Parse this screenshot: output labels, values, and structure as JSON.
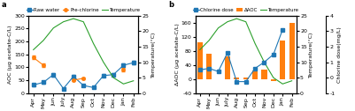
{
  "chart_data": [
    {
      "type": "line",
      "categories": [
        "Apr",
        "May",
        "Jun",
        "July",
        "Aug",
        "Sep",
        "Oct",
        "Nov",
        "Dec",
        "Jan",
        "Feb"
      ],
      "series": [
        {
          "name": "Raw water",
          "values": [
            32,
            42,
            72,
            18,
            65,
            30,
            22,
            68,
            72,
            108,
            118
          ],
          "errors": [
            4,
            4,
            7,
            3,
            5,
            3,
            3,
            5,
            5,
            7,
            7
          ],
          "marker": "square",
          "line_style": "solid"
        },
        {
          "name": "Pre-chlorine",
          "values": [
            138,
            108,
            null,
            null,
            50,
            58,
            null,
            null,
            null,
            92,
            null
          ],
          "errors": [
            7,
            7,
            null,
            null,
            3,
            3,
            null,
            null,
            null,
            6,
            null
          ],
          "marker": "circle",
          "line_style": "solid"
        },
        {
          "name": "Temperature",
          "values": [
            14,
            17,
            21,
            23,
            24,
            23,
            16,
            10,
            5,
            3,
            4
          ],
          "axis": "y2",
          "line_style": "solid"
        }
      ],
      "ylim": [
        0,
        300
      ],
      "yticks": [
        0,
        50,
        100,
        150,
        200,
        250,
        300
      ],
      "y2lim": [
        0,
        25
      ],
      "y2ticks": [
        0,
        5,
        10,
        15,
        20,
        25
      ],
      "ylabel": "AOC (μg acetate-C/L)",
      "y2label": "Temperature(°C)",
      "legend": "top",
      "annotations": [
        "a"
      ]
    },
    {
      "type": "bar",
      "categories": [
        "Apr",
        "May",
        "Jun",
        "July",
        "Aug",
        "Sep",
        "Oct",
        "Nov",
        "Dec",
        "Jan",
        "Feb"
      ],
      "series": [
        {
          "name": "Chlorine dose",
          "type": "line",
          "values": [
            0.5,
            0.6,
            0.4,
            1.6,
            -0.25,
            -0.25,
            0.6,
            1.0,
            1.5,
            3.1,
            null
          ],
          "axis": "y3",
          "marker": "square",
          "line_style": "solid"
        },
        {
          "name": "ΔAOC",
          "type": "bar",
          "values": [
            105,
            72,
            null,
            65,
            5,
            5,
            25,
            28,
            -5,
            110,
            158
          ]
        },
        {
          "name": "Temperature",
          "type": "line",
          "values": [
            14,
            17,
            21,
            23,
            24,
            23,
            16,
            10,
            5,
            3,
            4
          ],
          "axis": "y2",
          "line_style": "solid"
        }
      ],
      "ylim": [
        -40,
        180
      ],
      "yticks": [
        -40,
        0,
        40,
        80,
        120,
        160
      ],
      "y2lim": [
        0,
        25
      ],
      "y2ticks": [
        0,
        5,
        10,
        15,
        20,
        25
      ],
      "y3lim": [
        -1,
        4
      ],
      "y3ticks": [
        -1,
        0,
        1,
        2,
        3,
        4
      ],
      "ylabel": "ΔAOC (μg acetate-C/L)",
      "y2label": "Temperature(°C)",
      "y3label": "Chlorine dose(mg/L)",
      "legend": "top",
      "annotations": [
        "b"
      ]
    }
  ]
}
